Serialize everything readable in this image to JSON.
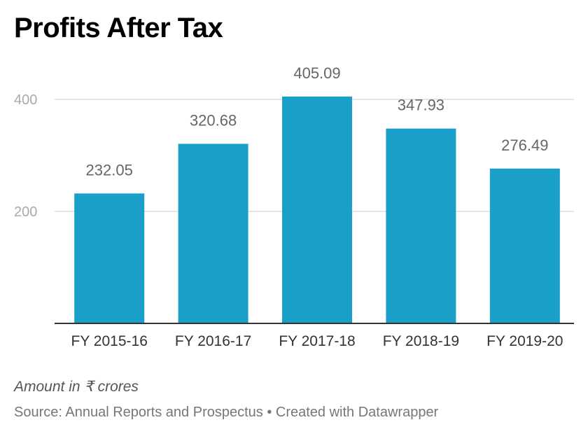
{
  "title": "Profits After Tax",
  "note": "Amount in ₹ crores",
  "source": "Source: Annual Reports and Prospectus • Created with Datawrapper",
  "colors": {
    "bar": "#1aa0c8",
    "gridline": "#dddddd",
    "axis": "#333333",
    "tick_label": "#aaaaaa",
    "value_label": "#666666",
    "category_label": "#333333"
  },
  "chart_data": {
    "type": "bar",
    "title": "Profits After Tax",
    "xlabel": "",
    "ylabel": "",
    "categories": [
      "FY 2015-16",
      "FY 2016-17",
      "FY 2017-18",
      "FY 2018-19",
      "FY 2019-20"
    ],
    "values": [
      232.05,
      320.68,
      405.09,
      347.93,
      276.49
    ],
    "value_labels": [
      "232.05",
      "320.68",
      "405.09",
      "347.93",
      "276.49"
    ],
    "yticks": [
      200,
      400
    ],
    "ytick_labels": [
      "200",
      "400"
    ],
    "ylim": [
      0,
      400
    ],
    "grid": true,
    "legend": "none"
  }
}
